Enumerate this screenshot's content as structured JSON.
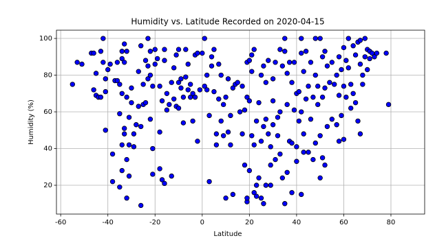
{
  "chart_data": {
    "type": "scatter",
    "title": "Humidity vs. Latitude Recorded on 2020-04-15",
    "x_label": "Latitude",
    "y_label": "Humidity (%)",
    "color": "#0000ff",
    "edgecolor": "#000000",
    "grid": true,
    "xlim": [
      -61.8,
      94.3
    ],
    "ylim": [
      4.3,
      104.5
    ],
    "xticks": [
      -60,
      -40,
      -20,
      0,
      20,
      40,
      60,
      80
    ],
    "yticks": [
      20,
      40,
      60,
      80,
      100
    ],
    "x": [
      -55,
      -53,
      -51,
      -47,
      -46,
      -46,
      -45,
      -45,
      -44,
      -43,
      -43,
      -42,
      -42,
      -41,
      -41,
      -41,
      -40,
      -39,
      -38,
      -38,
      -37,
      -36,
      -36,
      -35,
      -35,
      -35,
      -34,
      -34,
      -34,
      -34,
      -34,
      -33,
      -33,
      -33,
      -33,
      -32,
      -32,
      -32,
      -32,
      -31,
      -31,
      -31,
      -30,
      -30,
      -29,
      -29,
      -28,
      -27,
      -27,
      -26,
      -26,
      -26,
      -25,
      -25,
      -24,
      -24,
      -23,
      -23,
      -23,
      -22,
      -22,
      -22,
      -21,
      -21,
      -21,
      -20,
      -20,
      -19,
      -18,
      -18,
      -18,
      -17,
      -17,
      -16,
      -16,
      -16,
      -15,
      -15,
      -14,
      -13,
      -13,
      -12,
      -12,
      -11,
      -11,
      -10,
      -10,
      -10,
      -9,
      -9,
      -8,
      -8,
      -7,
      -7,
      -6,
      -6,
      -5,
      -5,
      -4,
      -4,
      -3,
      -3,
      -2,
      -2,
      -1,
      0,
      1,
      1,
      2,
      2,
      3,
      3,
      4,
      4,
      5,
      5,
      6,
      6,
      7,
      7,
      8,
      8,
      9,
      9,
      10,
      10,
      11,
      11,
      12,
      12,
      13,
      13,
      14,
      15,
      16,
      17,
      17,
      18,
      18,
      19,
      19,
      19,
      19,
      20,
      20,
      20,
      21,
      21,
      21,
      22,
      22,
      22,
      23,
      23,
      23,
      24,
      24,
      25,
      25,
      25,
      26,
      26,
      26,
      27,
      27,
      27,
      28,
      28,
      29,
      29,
      29,
      30,
      30,
      30,
      31,
      31,
      32,
      32,
      33,
      33,
      33,
      34,
      34,
      35,
      35,
      35,
      36,
      36,
      36,
      37,
      37,
      38,
      38,
      38,
      39,
      39,
      40,
      40,
      40,
      41,
      41,
      42,
      42,
      42,
      42,
      43,
      43,
      43,
      44,
      44,
      45,
      45,
      46,
      46,
      47,
      47,
      48,
      48,
      48,
      49,
      49,
      50,
      50,
      50,
      51,
      51,
      51,
      52,
      52,
      52,
      53,
      53,
      54,
      55,
      55,
      56,
      57,
      57,
      58,
      58,
      58,
      59,
      59,
      60,
      60,
      60,
      61,
      61,
      62,
      62,
      63,
      63,
      64,
      64,
      65,
      65,
      66,
      66,
      67,
      67,
      67,
      68,
      68,
      69,
      69,
      70,
      70,
      71,
      71,
      72,
      73,
      74,
      78,
      79
    ],
    "values": [
      75,
      87,
      86,
      92,
      92,
      72,
      81,
      69,
      68,
      68,
      93,
      100,
      87,
      50,
      71,
      78,
      83,
      86,
      37,
      22,
      77,
      77,
      87,
      75,
      59,
      19,
      93,
      89,
      28,
      42,
      70,
      97,
      87,
      51,
      48,
      93,
      68,
      34,
      13,
      57,
      42,
      25,
      73,
      65,
      41,
      48,
      53,
      82,
      63,
      9,
      96,
      52,
      75,
      64,
      88,
      65,
      78,
      85,
      100,
      93,
      80,
      56,
      74,
      40,
      26,
      94,
      86,
      89,
      74,
      49,
      29,
      66,
      23,
      94,
      88,
      21,
      70,
      61,
      64,
      25,
      76,
      84,
      67,
      63,
      91,
      94,
      62,
      76,
      73,
      78,
      54,
      68,
      94,
      79,
      72,
      86,
      75,
      68,
      55,
      70,
      91,
      68,
      92,
      44,
      72,
      92,
      74,
      100,
      72,
      80,
      22,
      58,
      90,
      85,
      94,
      71,
      48,
      42,
      86,
      67,
      55,
      80,
      47,
      64,
      68,
      13,
      49,
      78,
      58,
      42,
      73,
      15,
      75,
      76,
      60,
      48,
      74,
      31,
      61,
      87,
      68,
      11,
      13,
      66,
      28,
      88,
      82,
      47,
      91,
      42,
      94,
      16,
      55,
      20,
      14,
      65,
      24,
      80,
      44,
      13,
      52,
      85,
      10,
      76,
      56,
      20,
      88,
      48,
      41,
      20,
      31,
      78,
      53,
      66,
      34,
      87,
      57,
      47,
      94,
      60,
      37,
      85,
      24,
      93,
      100,
      10,
      81,
      64,
      27,
      87,
      44,
      43,
      16,
      76,
      61,
      87,
      70,
      41,
      33,
      71,
      55,
      100,
      92,
      60,
      15,
      82,
      38,
      48,
      93,
      67,
      74,
      38,
      56,
      87,
      34,
      68,
      100,
      80,
      43,
      74,
      64,
      100,
      47,
      24,
      90,
      68,
      35,
      93,
      73,
      31,
      85,
      52,
      76,
      87,
      56,
      75,
      80,
      53,
      90,
      69,
      44,
      83,
      58,
      95,
      74,
      45,
      88,
      68,
      100,
      84,
      75,
      62,
      96,
      70,
      91,
      65,
      98,
      55,
      99,
      86,
      48,
      80,
      75,
      100,
      90,
      94,
      83,
      89,
      93,
      92,
      90,
      92,
      92,
      64
    ]
  }
}
